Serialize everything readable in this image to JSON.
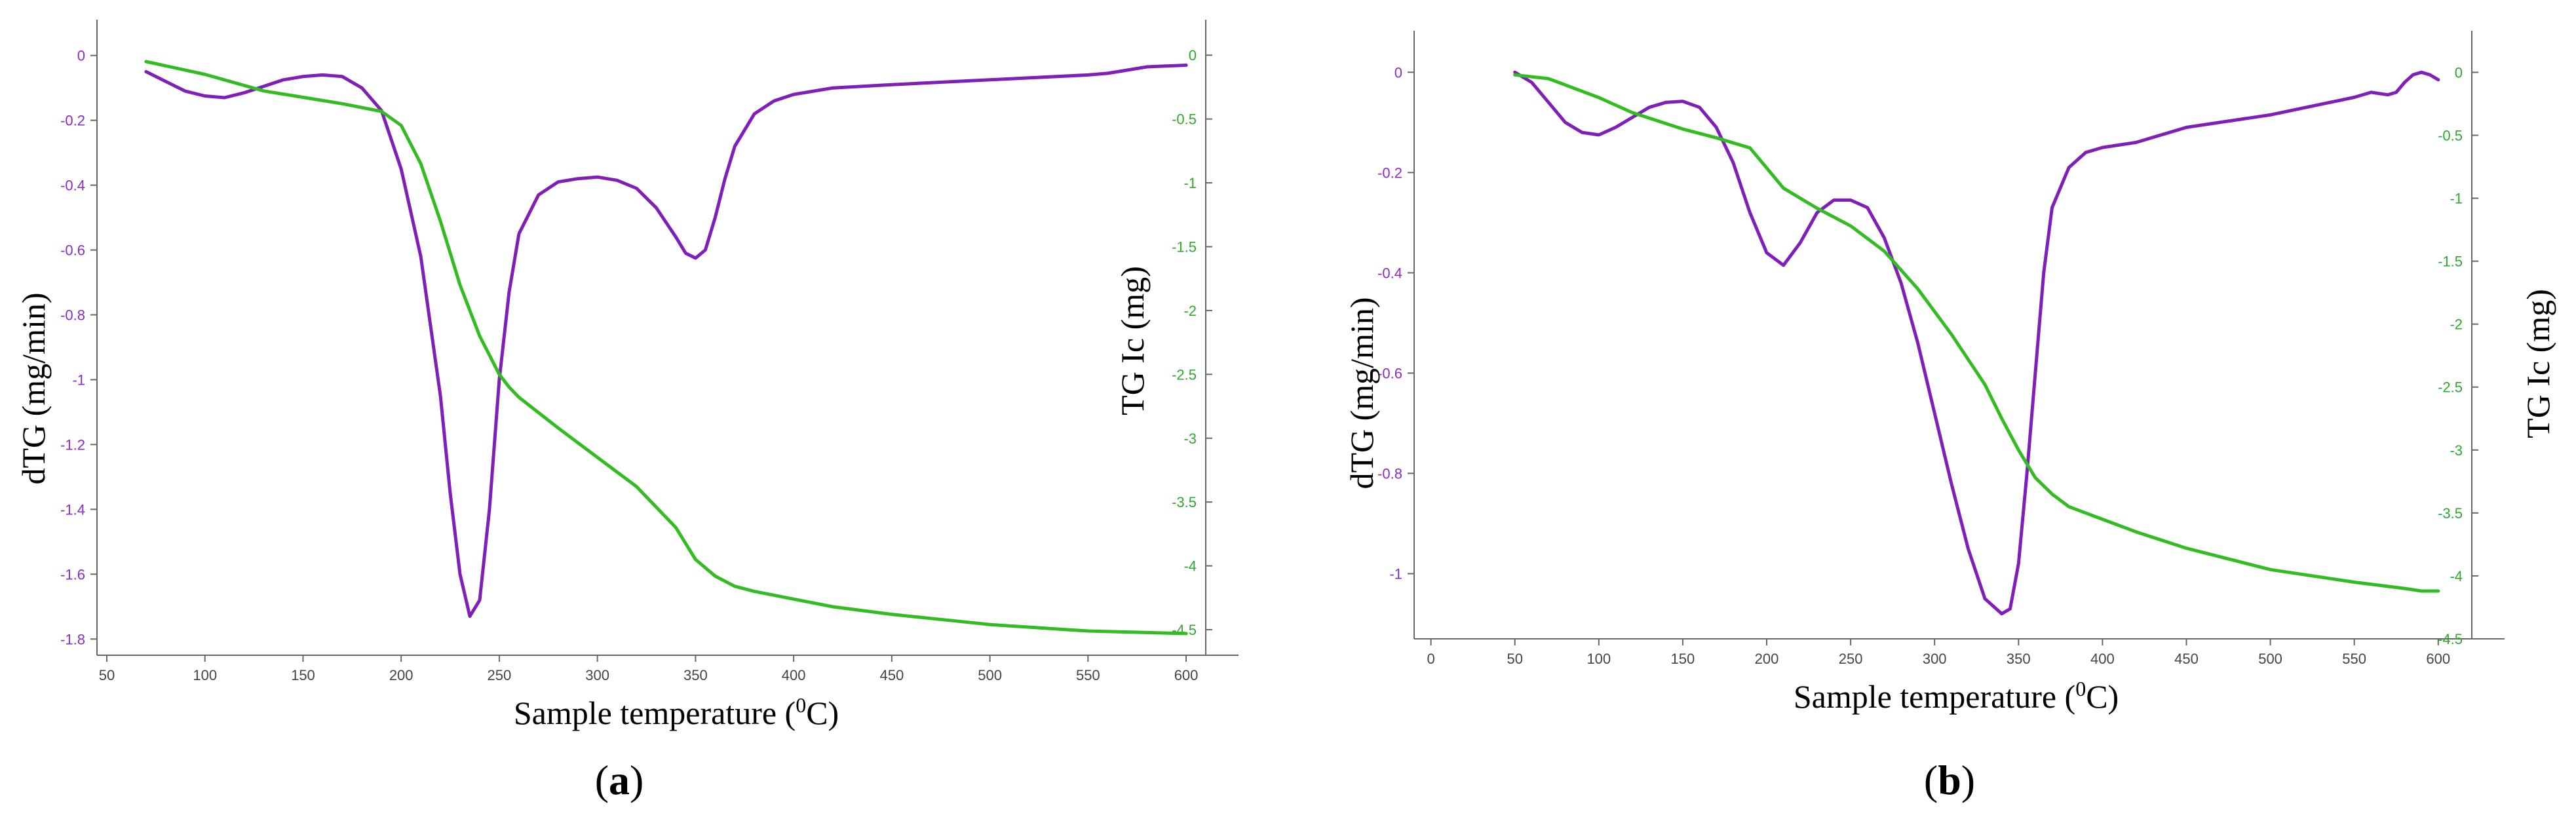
{
  "colors": {
    "dtg": "#7f1fb8",
    "tg": "#33bb22",
    "dtg_tick": "#8a2bc8",
    "tg_tick": "#2fa82f",
    "axis": "#666666"
  },
  "chart_data": [
    {
      "type": "line",
      "panel_label": "a",
      "xlabel": "Sample temperature (",
      "xlabel_sup": "0",
      "xlabel_end": "C)",
      "ylabel": "dTG (mg/min)",
      "y2label": "TG  Ic (mg)",
      "xlim": [
        45,
        610
      ],
      "ylim": [
        -1.85,
        0.06
      ],
      "y2lim": [
        -4.7,
        0.15
      ],
      "x_ticks": [
        "50",
        "100",
        "150",
        "200",
        "250",
        "300",
        "350",
        "400",
        "450",
        "500",
        "550",
        "600"
      ],
      "y_ticks": [
        "0",
        "-0.2",
        "-0.4",
        "-0.6",
        "-0.8",
        "-1",
        "-1.2",
        "-1.4",
        "-1.6",
        "-1.8"
      ],
      "y2_ticks": [
        "0",
        "-0.5",
        "-1",
        "-1.5",
        "-2",
        "-2.5",
        "-3",
        "-3.5",
        "-4",
        "-4.5"
      ],
      "series": [
        {
          "axis": "left",
          "x": [
            70,
            80,
            90,
            100,
            110,
            120,
            130,
            140,
            150,
            160,
            170,
            180,
            190,
            200,
            210,
            220,
            225,
            230,
            235,
            240,
            245,
            250,
            255,
            260,
            270,
            280,
            290,
            300,
            310,
            320,
            330,
            340,
            345,
            350,
            355,
            360,
            365,
            370,
            380,
            390,
            400,
            420,
            450,
            500,
            550,
            560,
            570,
            580,
            600
          ],
          "y": [
            -0.05,
            -0.08,
            -0.11,
            -0.125,
            -0.13,
            -0.115,
            -0.095,
            -0.075,
            -0.065,
            -0.06,
            -0.065,
            -0.1,
            -0.17,
            -0.35,
            -0.62,
            -1.05,
            -1.35,
            -1.6,
            -1.73,
            -1.68,
            -1.4,
            -1.0,
            -0.73,
            -0.55,
            -0.43,
            -0.39,
            -0.38,
            -0.375,
            -0.385,
            -0.41,
            -0.47,
            -0.56,
            -0.61,
            -0.625,
            -0.6,
            -0.5,
            -0.38,
            -0.28,
            -0.18,
            -0.14,
            -0.12,
            -0.1,
            -0.09,
            -0.075,
            -0.06,
            -0.055,
            -0.045,
            -0.035,
            -0.03
          ]
        },
        {
          "axis": "right",
          "x": [
            70,
            100,
            130,
            150,
            170,
            190,
            200,
            210,
            220,
            230,
            240,
            250,
            255,
            260,
            280,
            300,
            320,
            340,
            350,
            360,
            370,
            380,
            400,
            420,
            450,
            500,
            550,
            600
          ],
          "y": [
            -0.05,
            -0.15,
            -0.28,
            -0.33,
            -0.38,
            -0.44,
            -0.55,
            -0.85,
            -1.3,
            -1.8,
            -2.2,
            -2.5,
            -2.6,
            -2.68,
            -2.92,
            -3.15,
            -3.38,
            -3.7,
            -3.95,
            -4.08,
            -4.16,
            -4.2,
            -4.26,
            -4.32,
            -4.38,
            -4.46,
            -4.51,
            -4.53
          ]
        }
      ]
    },
    {
      "type": "line",
      "panel_label": "b",
      "xlabel": "Sample temperature (",
      "xlabel_sup": "0",
      "xlabel_end": "C)",
      "ylabel": "dTG (mg/min)",
      "y2label": "TG  Ic (mg)",
      "xlim": [
        -10,
        620
      ],
      "ylim": [
        -1.13,
        0.05
      ],
      "y2lim": [
        -4.5,
        0.2
      ],
      "x_ticks": [
        "0",
        "50",
        "100",
        "150",
        "200",
        "250",
        "300",
        "350",
        "400",
        "450",
        "500",
        "550",
        "600"
      ],
      "y_ticks": [
        "0",
        "-0.2",
        "-0.4",
        "-0.6",
        "-0.8",
        "-1"
      ],
      "y2_ticks": [
        "0",
        "-0.5",
        "-1",
        "-1.5",
        "-2",
        "-2.5",
        "-3",
        "-3.5",
        "-4",
        "-4.5"
      ],
      "series": [
        {
          "axis": "left",
          "x": [
            50,
            60,
            70,
            80,
            90,
            100,
            110,
            120,
            130,
            140,
            150,
            160,
            170,
            180,
            190,
            200,
            210,
            220,
            230,
            240,
            250,
            260,
            270,
            280,
            290,
            300,
            310,
            320,
            330,
            340,
            345,
            350,
            355,
            360,
            365,
            370,
            380,
            390,
            400,
            420,
            450,
            500,
            550,
            560,
            570,
            575,
            580,
            585,
            590,
            595,
            600
          ],
          "y": [
            0,
            -0.02,
            -0.06,
            -0.1,
            -0.12,
            -0.125,
            -0.11,
            -0.09,
            -0.07,
            -0.06,
            -0.058,
            -0.07,
            -0.11,
            -0.18,
            -0.28,
            -0.36,
            -0.385,
            -0.34,
            -0.28,
            -0.255,
            -0.255,
            -0.27,
            -0.33,
            -0.42,
            -0.54,
            -0.68,
            -0.82,
            -0.95,
            -1.05,
            -1.08,
            -1.07,
            -0.98,
            -0.8,
            -0.6,
            -0.4,
            -0.27,
            -0.19,
            -0.16,
            -0.15,
            -0.14,
            -0.11,
            -0.085,
            -0.05,
            -0.04,
            -0.045,
            -0.04,
            -0.02,
            -0.005,
            0.0,
            -0.005,
            -0.015
          ]
        },
        {
          "axis": "right",
          "x": [
            50,
            70,
            100,
            120,
            150,
            170,
            190,
            200,
            210,
            230,
            250,
            270,
            290,
            310,
            330,
            340,
            350,
            360,
            370,
            380,
            400,
            420,
            450,
            500,
            550,
            580,
            590,
            600
          ],
          "y": [
            -0.02,
            -0.05,
            -0.2,
            -0.32,
            -0.45,
            -0.52,
            -0.6,
            -0.76,
            -0.92,
            -1.08,
            -1.22,
            -1.42,
            -1.72,
            -2.08,
            -2.48,
            -2.75,
            -3.0,
            -3.22,
            -3.35,
            -3.45,
            -3.55,
            -3.65,
            -3.78,
            -3.95,
            -4.05,
            -4.1,
            -4.12,
            -4.12
          ]
        }
      ]
    }
  ]
}
